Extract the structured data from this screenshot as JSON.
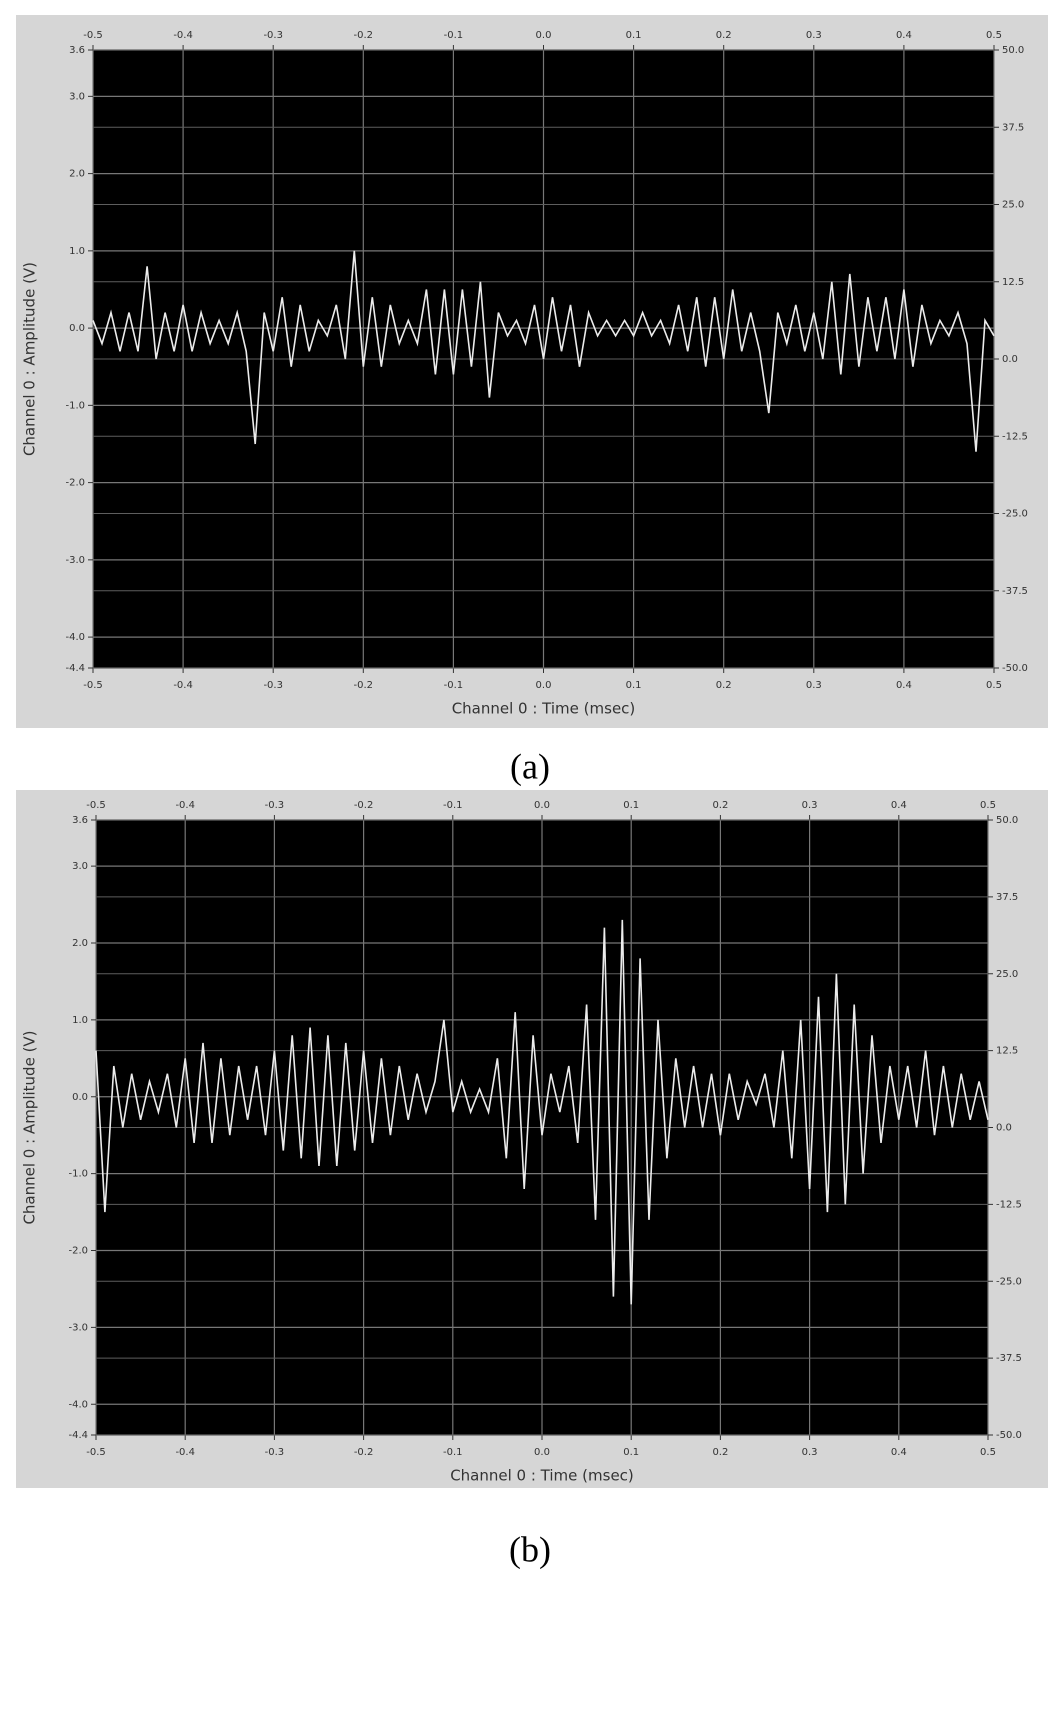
{
  "chart_data": [
    {
      "type": "line",
      "caption": "(a)",
      "xlabel": "Channel 0 : Time (msec)",
      "ylabel": "Channel 0 : Amplitude (V)",
      "color": "#ececec",
      "grid": true,
      "xlim": [
        -0.5,
        0.5
      ],
      "xticks": [
        -0.5,
        -0.4,
        -0.3,
        -0.2,
        -0.1,
        {
          "value": 0,
          "label": "0.0"
        },
        0.1,
        0.2,
        0.3,
        0.4,
        0.5
      ],
      "ylim": [
        -4.4,
        3.6
      ],
      "yticks": [
        3.6,
        {
          "value": 3,
          "label": "3.0"
        },
        {
          "value": 2,
          "label": "2.0"
        },
        {
          "value": 1,
          "label": "1.0"
        },
        {
          "value": 0,
          "label": "0.0"
        },
        {
          "value": -1,
          "label": "-1.0"
        },
        {
          "value": -2,
          "label": "-2.0"
        },
        {
          "value": -3,
          "label": "-3.0"
        },
        {
          "value": -4,
          "label": "-4.0"
        },
        -4.4
      ],
      "y2lim": [
        -50,
        50
      ],
      "y2ticks": [
        {
          "value": 50,
          "label": "50.0"
        },
        37.5,
        {
          "value": 25,
          "label": "25.0"
        },
        12.5,
        {
          "value": 0,
          "label": "0.0"
        },
        -12.5,
        {
          "value": -25,
          "label": "-25.0"
        },
        -37.5,
        {
          "value": -50,
          "label": "-50.0"
        }
      ],
      "x": [
        -0.5,
        -0.49,
        -0.48,
        -0.47,
        -0.46,
        -0.45,
        -0.44,
        -0.43,
        -0.42,
        -0.41,
        -0.4,
        -0.39,
        -0.38,
        -0.37,
        -0.36,
        -0.35,
        -0.34,
        -0.33,
        -0.32,
        -0.31,
        -0.3,
        -0.29,
        -0.28,
        -0.27,
        -0.26,
        -0.25,
        -0.24,
        -0.23,
        -0.22,
        -0.21,
        -0.2,
        -0.19,
        -0.18,
        -0.17,
        -0.16,
        -0.15,
        -0.14,
        -0.13,
        -0.12,
        -0.11,
        -0.1,
        -0.09,
        -0.08,
        -0.07,
        -0.06,
        -0.05,
        -0.04,
        -0.03,
        -0.02,
        -0.01,
        0,
        0.01,
        0.02,
        0.03,
        0.04,
        0.05,
        0.06,
        0.07,
        0.08,
        0.09,
        0.1,
        0.11,
        0.12,
        0.13,
        0.14,
        0.15,
        0.16,
        0.17,
        0.18,
        0.19,
        0.2,
        0.21,
        0.22,
        0.23,
        0.24,
        0.25,
        0.26,
        0.27,
        0.28,
        0.29,
        0.3,
        0.31,
        0.32,
        0.33,
        0.34,
        0.35,
        0.36,
        0.37,
        0.38,
        0.39,
        0.4,
        0.41,
        0.42,
        0.43,
        0.44,
        0.45,
        0.46,
        0.47,
        0.48,
        0.49,
        0.5
      ],
      "values": [
        0.1,
        -0.2,
        0.2,
        -0.3,
        0.2,
        -0.3,
        0.8,
        -0.4,
        0.2,
        -0.3,
        0.3,
        -0.3,
        0.2,
        -0.2,
        0.1,
        -0.2,
        0.2,
        -0.3,
        -1.5,
        0.2,
        -0.3,
        0.4,
        -0.5,
        0.3,
        -0.3,
        0.1,
        -0.1,
        0.3,
        -0.4,
        1.0,
        -0.5,
        0.4,
        -0.5,
        0.3,
        -0.2,
        0.1,
        -0.2,
        0.5,
        -0.6,
        0.5,
        -0.6,
        0.5,
        -0.5,
        0.6,
        -0.9,
        0.2,
        -0.1,
        0.1,
        -0.2,
        0.3,
        -0.4,
        0.4,
        -0.3,
        0.3,
        -0.5,
        0.2,
        -0.1,
        0.1,
        -0.1,
        0.1,
        -0.1,
        0.2,
        -0.1,
        0.1,
        -0.2,
        0.3,
        -0.3,
        0.4,
        -0.5,
        0.4,
        -0.4,
        0.5,
        -0.3,
        0.2,
        -0.3,
        -1.1,
        0.2,
        -0.2,
        0.3,
        -0.3,
        0.2,
        -0.4,
        0.6,
        -0.6,
        0.7,
        -0.5,
        0.4,
        -0.3,
        0.4,
        -0.4,
        0.5,
        -0.5,
        0.3,
        -0.2,
        0.1,
        -0.1,
        0.2,
        -0.2,
        -1.6,
        0.1,
        -0.1
      ]
    },
    {
      "type": "line",
      "caption": "(b)",
      "xlabel": "Channel 0 : Time (msec)",
      "ylabel": "Channel 0 : Amplitude (V)",
      "color": "#ececec",
      "grid": true,
      "xlim": [
        -0.5,
        0.5
      ],
      "xticks": [
        -0.5,
        -0.4,
        -0.3,
        -0.2,
        -0.1,
        {
          "value": 0,
          "label": "0.0"
        },
        0.1,
        0.2,
        0.3,
        0.4,
        0.5
      ],
      "ylim": [
        -4.4,
        3.6
      ],
      "yticks": [
        3.6,
        {
          "value": 3,
          "label": "3.0"
        },
        {
          "value": 2,
          "label": "2.0"
        },
        {
          "value": 1,
          "label": "1.0"
        },
        {
          "value": 0,
          "label": "0.0"
        },
        {
          "value": -1,
          "label": "-1.0"
        },
        {
          "value": -2,
          "label": "-2.0"
        },
        {
          "value": -3,
          "label": "-3.0"
        },
        {
          "value": -4,
          "label": "-4.0"
        },
        -4.4
      ],
      "y2lim": [
        -50,
        50
      ],
      "y2ticks": [
        {
          "value": 50,
          "label": "50.0"
        },
        37.5,
        {
          "value": 25,
          "label": "25.0"
        },
        12.5,
        {
          "value": 0,
          "label": "0.0"
        },
        -12.5,
        {
          "value": -25,
          "label": "-25.0"
        },
        -37.5,
        {
          "value": -50,
          "label": "-50.0"
        }
      ],
      "x": [
        -0.5,
        -0.49,
        -0.48,
        -0.47,
        -0.46,
        -0.45,
        -0.44,
        -0.43,
        -0.42,
        -0.41,
        -0.4,
        -0.39,
        -0.38,
        -0.37,
        -0.36,
        -0.35,
        -0.34,
        -0.33,
        -0.32,
        -0.31,
        -0.3,
        -0.29,
        -0.28,
        -0.27,
        -0.26,
        -0.25,
        -0.24,
        -0.23,
        -0.22,
        -0.21,
        -0.2,
        -0.19,
        -0.18,
        -0.17,
        -0.16,
        -0.15,
        -0.14,
        -0.13,
        -0.12,
        -0.11,
        -0.1,
        -0.09,
        -0.08,
        -0.07,
        -0.06,
        -0.05,
        -0.04,
        -0.03,
        -0.02,
        -0.01,
        0,
        0.01,
        0.02,
        0.03,
        0.04,
        0.05,
        0.06,
        0.07,
        0.08,
        0.09,
        0.1,
        0.11,
        0.12,
        0.13,
        0.14,
        0.15,
        0.16,
        0.17,
        0.18,
        0.19,
        0.2,
        0.21,
        0.22,
        0.23,
        0.24,
        0.25,
        0.26,
        0.27,
        0.28,
        0.29,
        0.3,
        0.31,
        0.32,
        0.33,
        0.34,
        0.35,
        0.36,
        0.37,
        0.38,
        0.39,
        0.4,
        0.41,
        0.42,
        0.43,
        0.44,
        0.45,
        0.46,
        0.47,
        0.48,
        0.49,
        0.5
      ],
      "values": [
        0.6,
        -1.5,
        0.4,
        -0.4,
        0.3,
        -0.3,
        0.2,
        -0.2,
        0.3,
        -0.4,
        0.5,
        -0.6,
        0.7,
        -0.6,
        0.5,
        -0.5,
        0.4,
        -0.3,
        0.4,
        -0.5,
        0.6,
        -0.7,
        0.8,
        -0.8,
        0.9,
        -0.9,
        0.8,
        -0.9,
        0.7,
        -0.7,
        0.6,
        -0.6,
        0.5,
        -0.5,
        0.4,
        -0.3,
        0.3,
        -0.2,
        0.2,
        1.0,
        -0.2,
        0.2,
        -0.2,
        0.1,
        -0.2,
        0.5,
        -0.8,
        1.1,
        -1.2,
        0.8,
        -0.5,
        0.3,
        -0.2,
        0.4,
        -0.6,
        1.2,
        -1.6,
        2.2,
        -2.6,
        2.3,
        -2.7,
        1.8,
        -1.6,
        1.0,
        -0.8,
        0.5,
        -0.4,
        0.4,
        -0.4,
        0.3,
        -0.5,
        0.3,
        -0.3,
        0.2,
        -0.1,
        0.3,
        -0.4,
        0.6,
        -0.8,
        1.0,
        -1.2,
        1.3,
        -1.5,
        1.6,
        -1.4,
        1.2,
        -1.0,
        0.8,
        -0.6,
        0.4,
        -0.3,
        0.4,
        -0.4,
        0.6,
        -0.5,
        0.4,
        -0.4,
        0.3,
        -0.3,
        0.2,
        -0.3
      ]
    }
  ]
}
